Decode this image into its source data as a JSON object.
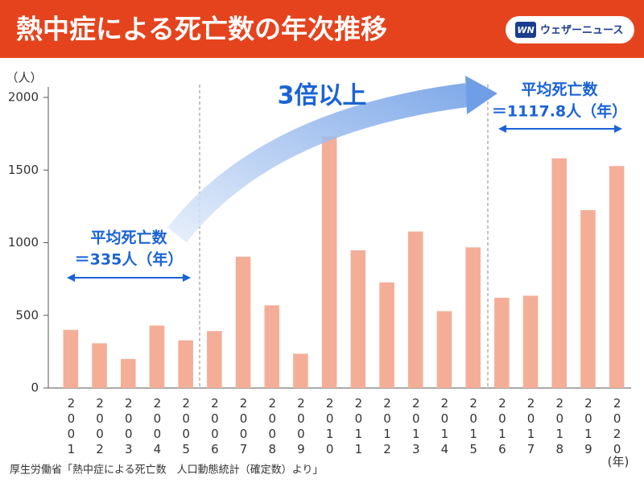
{
  "chart_data": {
    "type": "bar",
    "title": "熱中症による死亡数の年次推移",
    "logo": "ウェザーニュース",
    "logo_mark": "WN",
    "y_label": "（人）",
    "x_label": "(年)",
    "categories": [
      "2001",
      "2002",
      "2003",
      "2004",
      "2005",
      "2006",
      "2007",
      "2008",
      "2009",
      "2010",
      "2011",
      "2012",
      "2013",
      "2014",
      "2015",
      "2016",
      "2017",
      "2018",
      "2019",
      "2020"
    ],
    "values": [
      400,
      308,
      200,
      430,
      328,
      392,
      904,
      569,
      236,
      1731,
      948,
      727,
      1077,
      529,
      968,
      621,
      635,
      1581,
      1224,
      1528
    ],
    "color": "#f4ae98",
    "ylim": [
      0,
      2000
    ],
    "yticks": [
      0,
      500,
      1000,
      1500,
      2000
    ],
    "grid": false,
    "annotations": [
      "平均死亡数",
      "＝335人（年）",
      "3倍以上",
      "平均死亡数",
      "＝1117.8人（年）"
    ],
    "source": "厚生労働省「熱中症による死亡数　人口動態統計（確定数）より」"
  }
}
